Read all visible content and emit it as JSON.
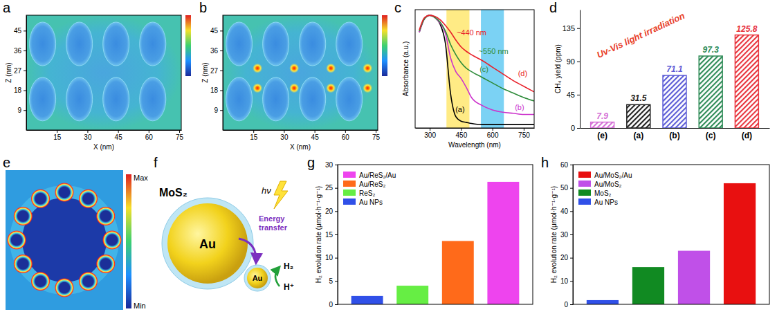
{
  "chart_data": [
    {
      "type": "field_map",
      "panel_label": "a",
      "x_label": "X (nm)",
      "y_label": "Z (nm)",
      "xlim": [
        0,
        76
      ],
      "ylim": [
        0,
        52
      ],
      "xticks": [
        15,
        30,
        45,
        60,
        75
      ],
      "yticks": [
        9,
        18,
        27,
        36,
        45
      ],
      "particles": {
        "x": [
          8,
          26,
          44,
          62,
          8,
          26,
          44,
          62
        ],
        "z": [
          39,
          39,
          39,
          39,
          14,
          14,
          14,
          14
        ]
      }
    },
    {
      "type": "field_map",
      "panel_label": "b",
      "x_label": "X (nm)",
      "y_label": "Z (nm)",
      "xlim": [
        0,
        76
      ],
      "ylim": [
        0,
        52
      ],
      "xticks": [
        15,
        30,
        45,
        60,
        75
      ],
      "yticks": [
        9,
        18,
        27,
        36,
        45
      ],
      "particles": {
        "x": [
          8,
          26,
          44,
          62,
          8,
          26,
          44,
          62
        ],
        "z": [
          39,
          39,
          39,
          39,
          14,
          14,
          14,
          14
        ]
      },
      "hot_spots": {
        "x": [
          17,
          35,
          53,
          71,
          17,
          35,
          53,
          71
        ],
        "z": [
          28,
          28,
          28,
          28,
          19,
          19,
          19,
          19
        ]
      }
    },
    {
      "type": "line",
      "panel_label": "c",
      "x_label": "Wavelength (nm)",
      "y_label": "Absorbance (a.u.)",
      "xlim": [
        230,
        800
      ],
      "ylim": [
        0,
        1.05
      ],
      "xticks": [
        300,
        450,
        600,
        750
      ],
      "tick_labels": "x",
      "x": [
        250,
        275,
        300,
        325,
        350,
        375,
        400,
        425,
        450,
        475,
        500,
        550,
        600,
        650,
        700,
        750,
        800
      ],
      "series": [
        {
          "color": "#000000",
          "values": [
            0.85,
            0.97,
            1,
            0.98,
            0.92,
            0.75,
            0.3,
            0.1,
            0.06,
            0.05,
            0.04,
            0.03,
            0.03,
            0.03,
            0.03,
            0.03,
            0.03
          ]
        },
        {
          "color": "#cc33cc",
          "values": [
            0.85,
            0.97,
            1,
            0.98,
            0.93,
            0.84,
            0.62,
            0.5,
            0.44,
            0.36,
            0.27,
            0.2,
            0.16,
            0.14,
            0.13,
            0.12,
            0.12
          ]
        },
        {
          "color": "#2e8b3a",
          "values": [
            0.86,
            0.97,
            1,
            0.98,
            0.94,
            0.86,
            0.74,
            0.65,
            0.58,
            0.53,
            0.5,
            0.45,
            0.4,
            0.35,
            0.31,
            0.27,
            0.24
          ]
        },
        {
          "color": "#e8202a",
          "values": [
            0.87,
            0.98,
            1,
            0.99,
            0.96,
            0.91,
            0.85,
            0.78,
            0.72,
            0.68,
            0.65,
            0.6,
            0.54,
            0.48,
            0.42,
            0.37,
            0.32
          ]
        }
      ],
      "bands": [
        {
          "from": 380,
          "to": 490,
          "color": "#ffe45c"
        },
        {
          "from": 545,
          "to": 655,
          "color": "#4fc3f0"
        }
      ],
      "annotations": [
        {
          "text": "~440 nm",
          "x": 500,
          "y": 0.82,
          "color": "#e8202a"
        },
        {
          "text": "~550 nm",
          "x": 605,
          "y": 0.66,
          "color": "#2e8b3a"
        },
        {
          "text": "(a)",
          "x": 445,
          "y": 0.14,
          "color": "#000000"
        },
        {
          "text": "(b)",
          "x": 730,
          "y": 0.16,
          "color": "#cc33cc"
        },
        {
          "text": "(c)",
          "x": 560,
          "y": 0.5,
          "color": "#2e8b3a"
        },
        {
          "text": "(d)",
          "x": 745,
          "y": 0.46,
          "color": "#e8202a"
        }
      ]
    },
    {
      "type": "bar",
      "panel_label": "d",
      "y_label": "CH₄ yield (ppm)",
      "categories": [
        "(e)",
        "(a)",
        "(b)",
        "(c)",
        "(d)"
      ],
      "values": [
        7.9,
        31.5,
        71.1,
        97.3,
        125.8
      ],
      "colors": [
        "#d46fd6",
        "#222222",
        "#5b5bd6",
        "#2e8b57",
        "#e8333c"
      ],
      "ylim": [
        0,
        160
      ],
      "yticks": [
        0,
        45,
        90,
        135
      ],
      "data_labels": true,
      "annotations": [
        {
          "text": "Uv-Vis light irradiation",
          "color": "#e8402a"
        }
      ]
    },
    {
      "type": "field_map",
      "panel_label": "e",
      "color_bar": {
        "max_label": "Max",
        "min_label": "Min"
      }
    },
    {
      "type": "bar",
      "panel_label": "g",
      "y_label": "H₂ evolution rate (μmol·h⁻¹·g⁻¹)",
      "categories": [
        "Au NPs",
        "ReS₂",
        "Au/ReS₂",
        "Au/ReS₂/Au"
      ],
      "values": [
        1.8,
        4,
        13.6,
        26.3
      ],
      "colors": [
        "#3050e8",
        "#66ee44",
        "#ff6a1a",
        "#ee44ee"
      ],
      "ylim": [
        0,
        30
      ],
      "yticks": [
        0,
        5,
        10,
        15,
        20,
        25,
        30
      ],
      "legend": "upper-left",
      "tick_labels": "y"
    },
    {
      "type": "bar",
      "panel_label": "h",
      "y_label": "H₂ evolution rate (μmol·h⁻¹·g⁻¹)",
      "categories": [
        "Au NPs",
        "MoS₂",
        "Au/MoS₂",
        "Au/MoS₂/Au"
      ],
      "values": [
        1.8,
        16,
        23,
        52
      ],
      "colors": [
        "#3050e8",
        "#118a22",
        "#c050e8",
        "#e81010"
      ],
      "ylim": [
        0,
        60
      ],
      "yticks": [
        0,
        10,
        20,
        30,
        40,
        50,
        60
      ],
      "legend": "upper-left",
      "tick_labels": "y"
    }
  ],
  "diagram": {
    "panel_label": "f",
    "shell_label": "MoS₂",
    "core_label": "Au",
    "particle_label": "Au",
    "arrow_label": "Energy transfer",
    "light_label": "hν",
    "product_label": "H₂",
    "reactant_label": "H⁺"
  }
}
